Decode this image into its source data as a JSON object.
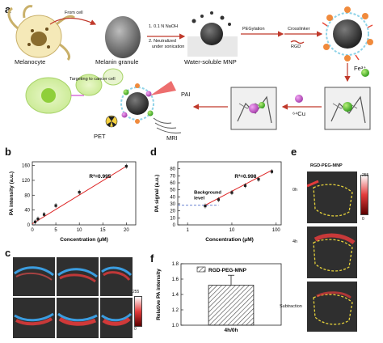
{
  "panel_letters": {
    "a": "a",
    "b": "b",
    "c": "c",
    "d": "d",
    "e": "e",
    "f": "f"
  },
  "panel_a": {
    "from_cell": "From cell",
    "melanocyte": "Melanocyte",
    "melanin_granule": "Melanin granule",
    "step1": "1. 0.1 N NaOH",
    "step2": "2. Neutralized",
    "step2b": "under sonication",
    "water_mnp": "Water-soluble MNP",
    "pegylation": "PEGylation",
    "crosslinker": "Crosslinker",
    "rgd": "RGD",
    "fe": "Fe³⁺",
    "cu": "⁶⁴Cu",
    "targeting": "Targeting to cancer cell",
    "pai": "PAI",
    "pet": "PET",
    "mri": "MRI"
  },
  "panel_e": {
    "title": "RGD-PEG-MNP",
    "t0": "0h",
    "t4": "4h",
    "subtraction": "Subtraction",
    "scale_max": "255",
    "scale_min": "0"
  },
  "panel_c": {
    "scale_max": "255",
    "scale_min": "0"
  },
  "chart_data": [
    {
      "panel": "b",
      "type": "scatter",
      "xlabel": "Concentration (μM)",
      "ylabel": "PA intensity (a.u.)",
      "xlim": [
        0,
        22
      ],
      "ylim": [
        0,
        170
      ],
      "xticks": [
        0,
        5,
        10,
        15,
        20
      ],
      "yticks": [
        0,
        40,
        80,
        120,
        160
      ],
      "x": [
        0.6,
        1.2,
        2.5,
        5,
        10,
        20
      ],
      "y": [
        8,
        16,
        28,
        52,
        88,
        158
      ],
      "fit": [
        [
          0,
          3
        ],
        [
          20,
          158
        ]
      ],
      "annotation": "R²=0.995"
    },
    {
      "panel": "d",
      "type": "scatter",
      "xlabel": "Concentration (μM)",
      "ylabel": "PA signal (a.u.)",
      "xscale": "log",
      "xlim": [
        0.6,
        130
      ],
      "ylim": [
        0,
        90
      ],
      "xticks": [
        1,
        10,
        100
      ],
      "yticks": [
        0,
        10,
        20,
        30,
        40,
        50,
        60,
        70,
        80
      ],
      "x": [
        2.5,
        5,
        10,
        20,
        40,
        80
      ],
      "y": [
        27,
        36,
        46,
        56,
        65,
        76
      ],
      "fit": [
        [
          2.5,
          28
        ],
        [
          80,
          78
        ]
      ],
      "annotation": "R²=0.998",
      "background_label_1": "Background",
      "background_label_2": "level",
      "background_value": 28
    },
    {
      "panel": "f",
      "type": "bar",
      "categories": [
        "4h/0h"
      ],
      "values": [
        1.52
      ],
      "errors": [
        0.13
      ],
      "ylabel": "Relative PA intensity",
      "legend": "RGD-PEG-MNP",
      "ylim": [
        1.0,
        1.8
      ],
      "yticks": [
        "1.0",
        "1.2",
        "1.4",
        "1.6",
        "1.8"
      ]
    }
  ]
}
